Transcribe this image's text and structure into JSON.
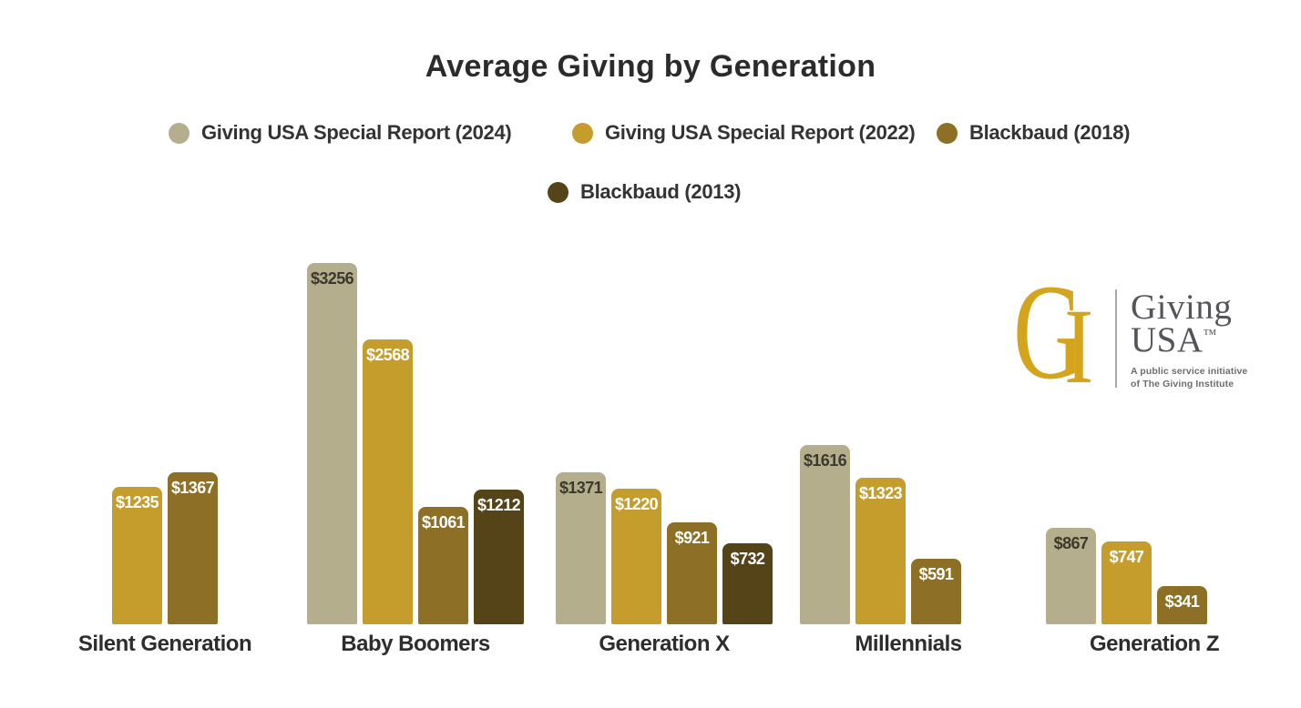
{
  "title": "Average Giving by Generation",
  "colors": {
    "background": "#FFFFFF",
    "title_text": "#2B2B2B",
    "legend_text": "#333333",
    "category_label_text": "#2D2D2D"
  },
  "chart_data": {
    "type": "bar",
    "title": "Average Giving by Generation",
    "categories": [
      "Silent Generation",
      "Baby Boomers",
      "Generation X",
      "Millennials",
      "Generation Z"
    ],
    "series": [
      {
        "name": "Giving USA Special Report (2024)",
        "color": "#B5AE8C",
        "value_label_color": "#3B392E",
        "values": [
          null,
          3256,
          1371,
          1616,
          867
        ]
      },
      {
        "name": "Giving USA Special Report (2022)",
        "color": "#C59D2C",
        "value_label_color": "#FFFFFF",
        "values": [
          1235,
          2568,
          1220,
          1323,
          747
        ]
      },
      {
        "name": "Blackbaud (2018)",
        "color": "#8D6F25",
        "value_label_color": "#FFFFFF",
        "values": [
          1367,
          1061,
          921,
          591,
          341
        ]
      },
      {
        "name": "Blackbaud (2013)",
        "color": "#554417",
        "value_label_color": "#FFFFFF",
        "values": [
          null,
          1212,
          732,
          null,
          null
        ]
      }
    ],
    "value_prefix": "$",
    "ylim": [
      0,
      3400
    ],
    "grid": false,
    "legend_position": "top",
    "value_labels": "inside-top"
  },
  "logo": {
    "monogram_g": "G",
    "monogram_i": "I",
    "name_line1": "Giving",
    "name_line2": "USA",
    "trademark": "™",
    "tagline_line1": "A public service initiative",
    "tagline_line2": "of The Giving Institute",
    "colors": {
      "monogram": "#D3A41C",
      "name_text": "#55545A",
      "tagline_text": "#6E6E6E",
      "divider": "#A9A9A9"
    }
  }
}
